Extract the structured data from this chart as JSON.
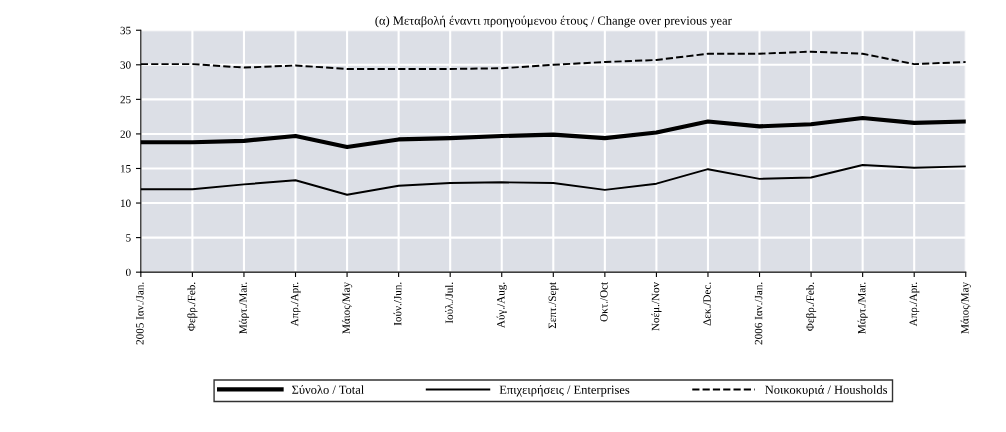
{
  "chart_data": {
    "type": "line",
    "title": "(α) Μεταβολή έναντι προηγούμενου έτους / Change over previous year",
    "categories": [
      "2005 Ιαν./Jan.",
      "Φεβρ./Feb.",
      "Μάρτ./Mar.",
      "Απρ./Apr.",
      "Μάιος/May",
      "Ιούν./Jun.",
      "Ιούλ./Jul.",
      "Αύγ./Aug.",
      "Σεπτ./Sept",
      "Οκτ./Oct",
      "Νοέμ./Nov",
      "Δεκ./Dec.",
      "2006 Ιαν./Jan.",
      "Φεβρ./Feb.",
      "Μάρτ./Mar.",
      "Απρ./Apr.",
      "Μάιος/May"
    ],
    "series": [
      {
        "name": "Σύνολο / Total",
        "color": "#000000",
        "line_style": "solid",
        "values": [
          18.8,
          18.8,
          19.0,
          19.7,
          18.1,
          19.2,
          19.4,
          19.7,
          19.9,
          19.4,
          20.2,
          21.8,
          21.1,
          21.4,
          22.3,
          21.6,
          21.8
        ]
      },
      {
        "name": "Επιχειρήσεις / Enterprises",
        "color": "#000000",
        "line_style": "solid",
        "values": [
          12.0,
          12.0,
          12.7,
          13.3,
          11.2,
          12.5,
          12.9,
          13.0,
          12.9,
          11.9,
          12.8,
          14.9,
          13.5,
          13.7,
          15.5,
          15.1,
          15.3
        ]
      },
      {
        "name": "Νοικοκυριά / Housholds",
        "color": "#000000",
        "line_style": "dashed",
        "values": [
          30.1,
          30.1,
          29.6,
          29.9,
          29.4,
          29.4,
          29.4,
          29.5,
          30.0,
          30.4,
          30.7,
          31.6,
          31.6,
          31.9,
          31.6,
          30.1,
          30.4
        ]
      }
    ],
    "ylim": [
      0,
      35
    ],
    "yticks": [
      0,
      5,
      10,
      15,
      20,
      25,
      30,
      35
    ],
    "grid": true,
    "legend": "bottom",
    "marker": "none"
  }
}
